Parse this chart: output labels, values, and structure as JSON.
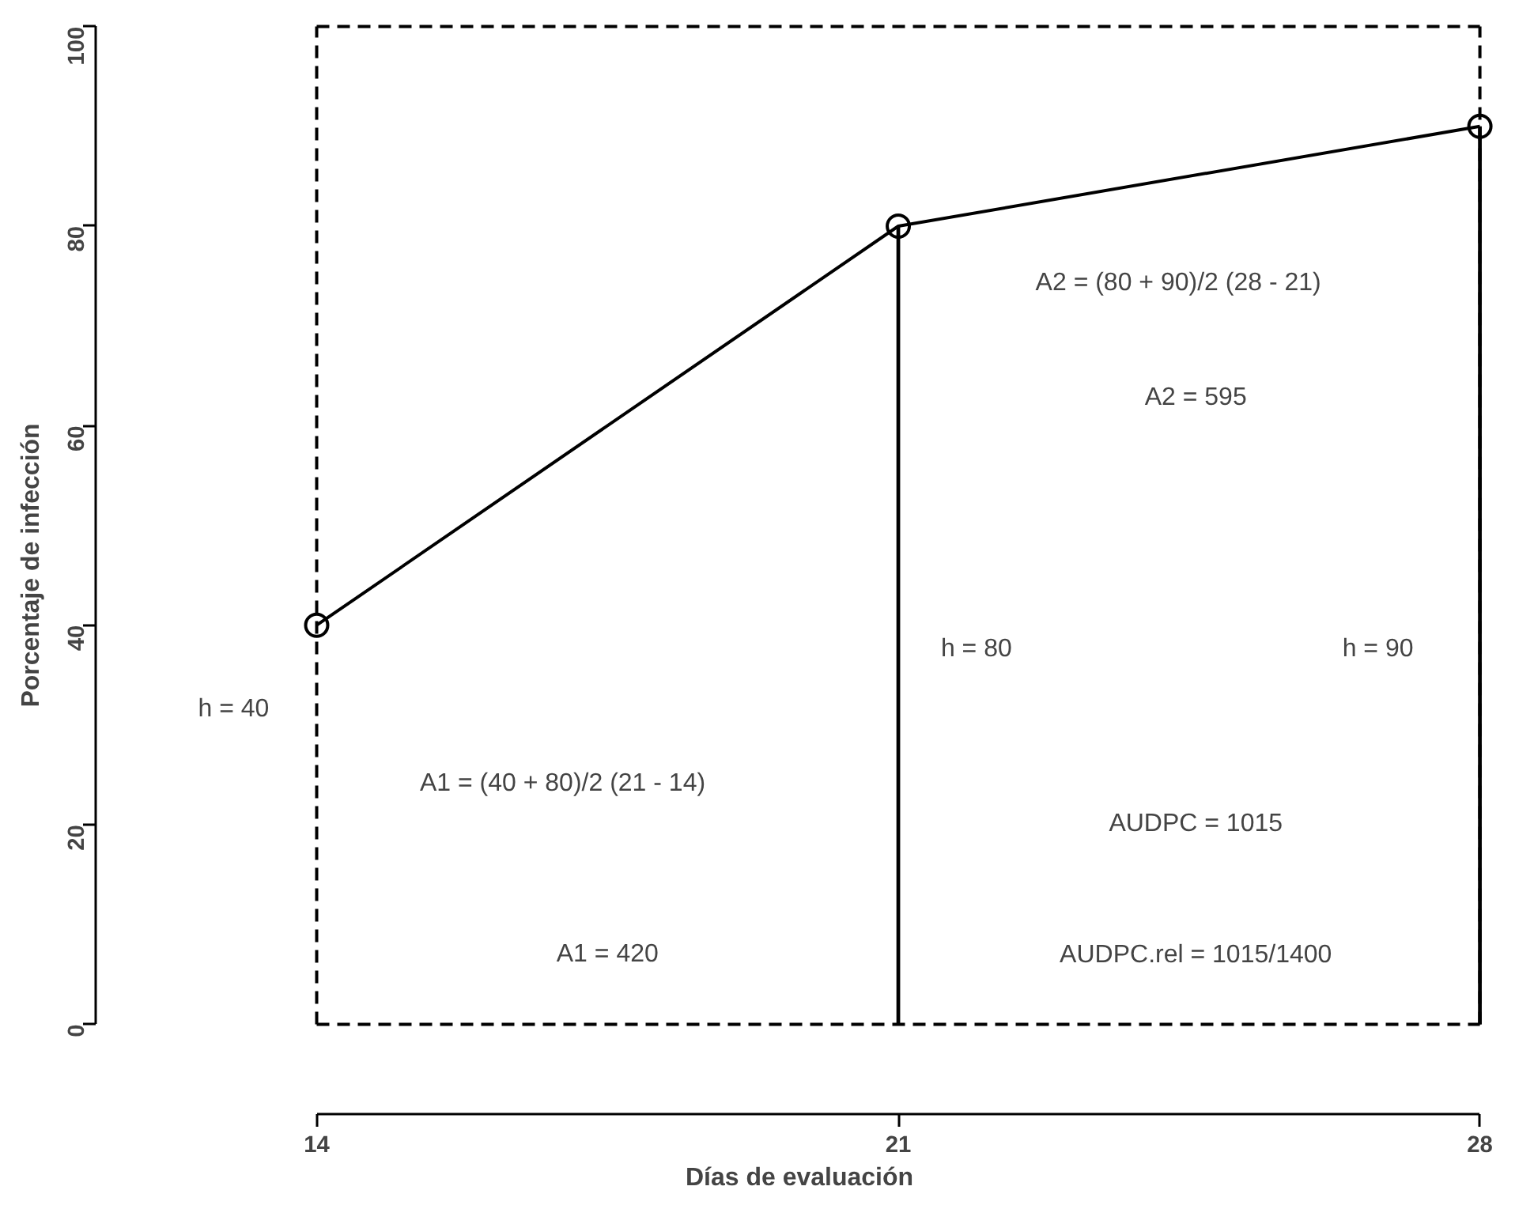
{
  "chart_data": {
    "type": "line",
    "xlabel": "Días de evaluación",
    "ylabel": "Porcentaje de infección",
    "xlim": [
      14,
      28
    ],
    "ylim": [
      0,
      100
    ],
    "xticks": [
      14,
      21,
      28
    ],
    "yticks": [
      0,
      20,
      40,
      60,
      80,
      100
    ],
    "marker": "circle",
    "line_style": "solid",
    "series": [
      {
        "color": "#000000",
        "x": [
          14,
          21,
          28
        ],
        "values": [
          40,
          80,
          90
        ]
      },
      {
        "type": "bar",
        "color": "#000000",
        "x": [
          21,
          28
        ],
        "values": [
          80,
          90
        ]
      }
    ],
    "ref_lines": [
      {
        "axis": "x",
        "value": 14,
        "color": "#000000",
        "line_style": "dashed"
      },
      {
        "axis": "x",
        "value": 28,
        "color": "#000000",
        "line_style": "dashed"
      },
      {
        "axis": "y",
        "value": 0,
        "color": "#000000",
        "line_style": "dashed"
      },
      {
        "axis": "y",
        "value": 100,
        "color": "#000000",
        "line_style": "dashed"
      }
    ],
    "annotations": [
      "h = 40",
      "A1 = (40 + 80)/2 (21 - 14)",
      "A1 = 420",
      "h = 80",
      "h = 90",
      "A2 = (80 + 90)/2 (28 - 21)",
      "A2 = 595",
      "AUDPC = 1015",
      "AUDPC.rel = 1015/1400"
    ]
  }
}
